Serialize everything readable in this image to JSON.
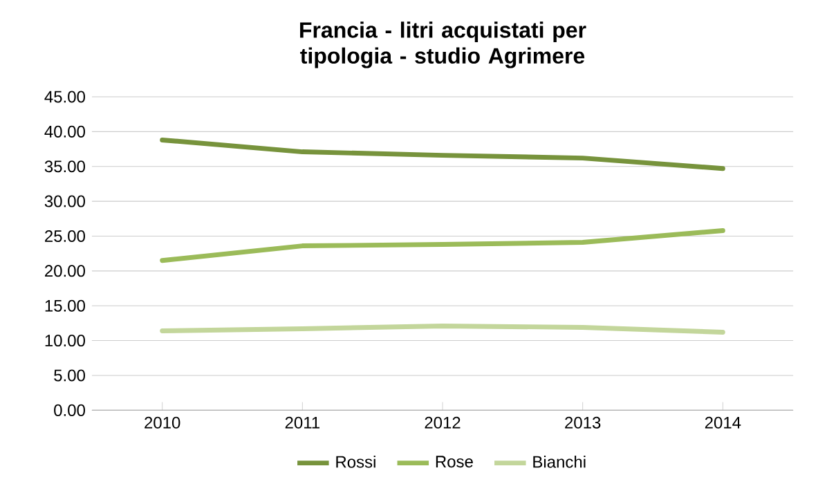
{
  "chart_data": {
    "type": "line",
    "title": "Francia - litri acquistati per tipologia - studio Agrimere",
    "categories": [
      "2010",
      "2011",
      "2012",
      "2013",
      "2014"
    ],
    "series": [
      {
        "name": "Rossi",
        "color": "#77933c",
        "values": [
          38.8,
          37.1,
          36.6,
          36.2,
          34.7
        ]
      },
      {
        "name": "Rose",
        "color": "#9bbb59",
        "values": [
          21.5,
          23.6,
          23.8,
          24.1,
          25.8
        ]
      },
      {
        "name": "Bianchi",
        "color": "#c3d69b",
        "values": [
          11.4,
          11.7,
          12.1,
          11.9,
          11.2
        ]
      }
    ],
    "ylim": [
      0,
      45
    ],
    "yticks": [
      {
        "value": 0,
        "label": "0.00"
      },
      {
        "value": 5,
        "label": "5.00"
      },
      {
        "value": 10,
        "label": "10.00"
      },
      {
        "value": 15,
        "label": "15.00"
      },
      {
        "value": 20,
        "label": "20.00"
      },
      {
        "value": 25,
        "label": "25.00"
      },
      {
        "value": 30,
        "label": "30.00"
      },
      {
        "value": 35,
        "label": "35.00"
      },
      {
        "value": 40,
        "label": "40.00"
      },
      {
        "value": 45,
        "label": "45.00"
      }
    ],
    "grid": "y",
    "legend": "bottom",
    "marker": "none"
  }
}
